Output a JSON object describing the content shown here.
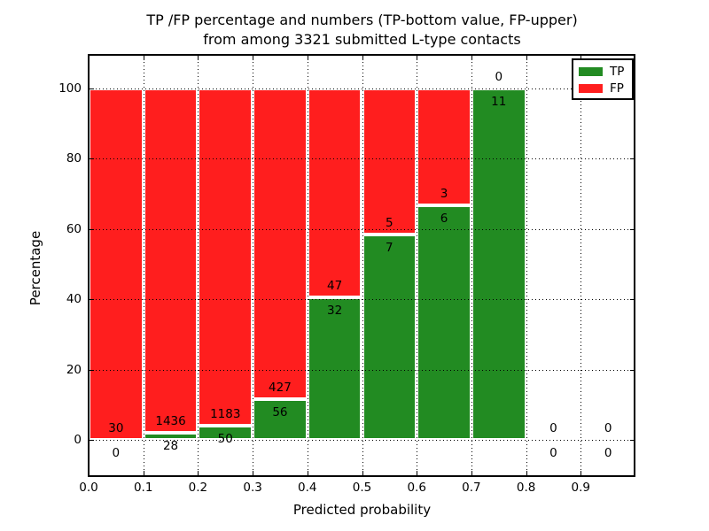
{
  "title": {
    "line1": "TP /FP percentage and numbers (TP-bottom value, FP-upper)",
    "line2": "from among 3321 submitted L-type contacts"
  },
  "colors": {
    "tp": "#228b22",
    "fp": "#ff1e1e",
    "grid": "#000000",
    "bar_edge": "#ffffff"
  },
  "legend": {
    "items": [
      {
        "label": "TP",
        "color_key": "tp"
      },
      {
        "label": "FP",
        "color_key": "fp"
      }
    ]
  },
  "chart_data": {
    "type": "bar",
    "stacked": true,
    "normalized": "percent",
    "title": "TP /FP percentage and numbers (TP-bottom value, FP-upper)\nfrom among 3321 submitted L-type contacts",
    "xlabel": "Predicted probability",
    "ylabel": "Percentage",
    "xlim": [
      0.0,
      1.0
    ],
    "ylim": [
      -10.3,
      109.6
    ],
    "xticks": [
      "0.0",
      "0.1",
      "0.2",
      "0.3",
      "0.4",
      "0.5",
      "0.6",
      "0.7",
      "0.8",
      "0.9"
    ],
    "yticks": [
      0,
      20,
      40,
      60,
      80,
      100
    ],
    "grid": true,
    "grid_style": "dotted",
    "legend_position": "upper right",
    "series": [
      {
        "name": "TP",
        "color_key": "tp",
        "counts": [
          0,
          28,
          50,
          56,
          32,
          7,
          6,
          11,
          0,
          0
        ]
      },
      {
        "name": "FP",
        "color_key": "fp",
        "counts": [
          30,
          1436,
          1183,
          427,
          47,
          5,
          3,
          0,
          0,
          0
        ]
      }
    ],
    "bins": [
      {
        "x0": 0.0,
        "x1": 0.1,
        "tp": 0,
        "fp": 30
      },
      {
        "x0": 0.1,
        "x1": 0.2,
        "tp": 28,
        "fp": 1436
      },
      {
        "x0": 0.2,
        "x1": 0.3,
        "tp": 50,
        "fp": 1183
      },
      {
        "x0": 0.3,
        "x1": 0.4,
        "tp": 56,
        "fp": 427
      },
      {
        "x0": 0.4,
        "x1": 0.5,
        "tp": 32,
        "fp": 47
      },
      {
        "x0": 0.5,
        "x1": 0.6,
        "tp": 7,
        "fp": 5
      },
      {
        "x0": 0.6,
        "x1": 0.7,
        "tp": 6,
        "fp": 3
      },
      {
        "x0": 0.7,
        "x1": 0.8,
        "tp": 11,
        "fp": 0
      },
      {
        "x0": 0.8,
        "x1": 0.9,
        "tp": 0,
        "fp": 0
      },
      {
        "x0": 0.9,
        "x1": 1.0,
        "tp": 0,
        "fp": 0
      }
    ]
  }
}
